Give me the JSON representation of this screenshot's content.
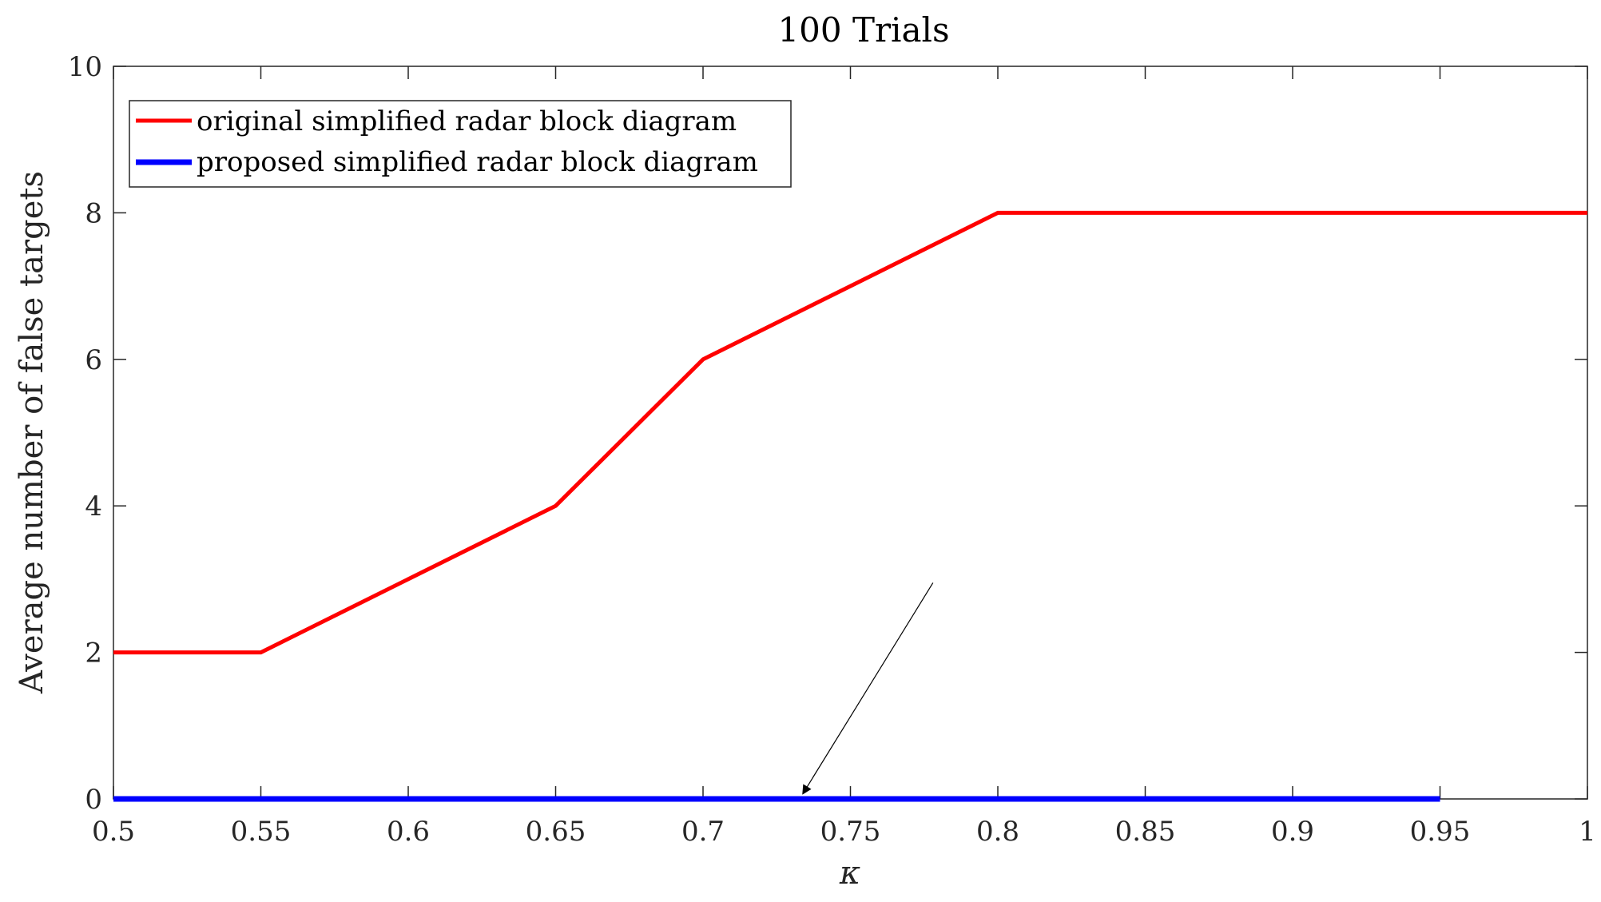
{
  "chart_data": {
    "type": "line",
    "title": "100 Trials",
    "xlabel": "κ",
    "ylabel": "Average number of false targets",
    "xlim": [
      0.5,
      1
    ],
    "ylim": [
      0,
      10
    ],
    "xticks": [
      0.5,
      0.55,
      0.6,
      0.65,
      0.7,
      0.75,
      0.8,
      0.85,
      0.9,
      0.95,
      1
    ],
    "xtick_labels": [
      "0.5",
      "0.55",
      "0.6",
      "0.65",
      "0.7",
      "0.75",
      "0.8",
      "0.85",
      "0.9",
      "0.95",
      "1"
    ],
    "yticks": [
      0,
      2,
      4,
      6,
      8,
      10
    ],
    "ytick_labels": [
      "0",
      "2",
      "4",
      "6",
      "8",
      "10"
    ],
    "grid": false,
    "legend_position": "top-left",
    "series": [
      {
        "name": "original simplified radar block diagram",
        "color": "#ff0000",
        "x": [
          0.5,
          0.55,
          0.6,
          0.65,
          0.7,
          0.75,
          0.8,
          0.85,
          0.9,
          0.95,
          1.0
        ],
        "y": [
          2,
          2,
          3,
          4,
          6,
          7,
          8,
          8,
          8,
          8,
          8
        ]
      },
      {
        "name": "proposed simplified radar block diagram",
        "color": "#0000ff",
        "x": [
          0.5,
          0.55,
          0.6,
          0.65,
          0.7,
          0.75,
          0.8,
          0.85,
          0.9,
          0.95
        ],
        "y": [
          0,
          0,
          0,
          0,
          0,
          0,
          0,
          0,
          0,
          0
        ]
      }
    ],
    "annotations": [
      {
        "type": "arrow",
        "from": [
          0.778,
          2.95
        ],
        "to": [
          0.734,
          0.08
        ]
      }
    ]
  }
}
